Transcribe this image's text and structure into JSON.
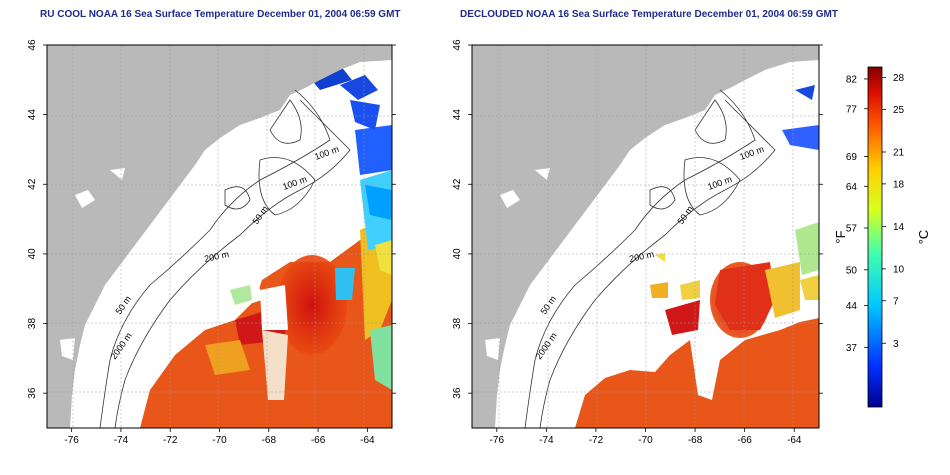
{
  "panels": [
    {
      "title": "RU COOL NOAA 16 Sea Surface Temperature December 01, 2004 06:59 GMT",
      "mode": "cool"
    },
    {
      "title": "DECLOUDED NOAA 16 Sea Surface Temperature December 01, 2004 06:59 GMT",
      "mode": "declouded"
    }
  ],
  "axes": {
    "lon_ticks": [
      "-76",
      "-74",
      "-72",
      "-70",
      "-68",
      "-66",
      "-64"
    ],
    "lat_ticks": [
      "36",
      "38",
      "40",
      "42",
      "44",
      "46"
    ]
  },
  "contours": [
    "100 m",
    "100 m",
    "50 m",
    "200 m",
    "50 m",
    "2000 m"
  ],
  "colorbar": {
    "f_label": "°F",
    "c_label": "°C",
    "f_ticks": [
      "82",
      "77",
      "69",
      "64",
      "57",
      "50",
      "44",
      "37"
    ],
    "c_ticks": [
      "28",
      "25",
      "21",
      "18",
      "14",
      "10",
      "7",
      "3"
    ]
  },
  "colors": {
    "land": "#b9b9b9",
    "title": "#1f2a8c",
    "cold": "#1030d0",
    "warm": "#e04010",
    "hot": "#c01010"
  }
}
